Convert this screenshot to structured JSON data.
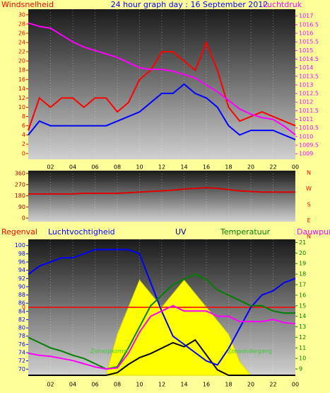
{
  "chart_data": [
    {
      "type": "line",
      "title": "24 hour graph day : 16 September 2012",
      "ylabel": "Windsnelheid",
      "y2label": "Luchtdruk",
      "xlim": [
        0,
        24
      ],
      "xticks": [
        {
          "value": 2,
          "label": "02"
        },
        {
          "value": 4,
          "label": "04"
        },
        {
          "value": 6,
          "label": "06"
        },
        {
          "value": 8,
          "label": "08"
        },
        10,
        12,
        14,
        16,
        18,
        20,
        22,
        {
          "value": 24,
          "label": "00"
        }
      ],
      "x": [
        0,
        1,
        2,
        3,
        4,
        5,
        6,
        7,
        8,
        9,
        10,
        11,
        12,
        13,
        14,
        15,
        16,
        17,
        18,
        19,
        20,
        21,
        22,
        23,
        24
      ],
      "ylim": [
        -0.8,
        31.2
      ],
      "yticks": [
        0,
        2,
        4,
        6,
        8,
        10,
        12,
        14,
        16,
        18,
        20,
        22,
        24,
        26,
        28,
        30
      ],
      "y2lim": [
        1008.8,
        1017.4
      ],
      "y2ticks": [
        1009,
        1009.5,
        1010,
        1010.5,
        1011,
        1011.5,
        1012,
        1012.5,
        1013,
        1013.5,
        1014,
        1014.5,
        1015,
        1015.5,
        1016,
        1016.5,
        1017
      ],
      "series": [
        {
          "color": "#ff0000",
          "values": [
            5,
            12,
            10,
            12,
            12,
            10,
            12,
            12,
            9,
            11,
            16,
            18,
            22,
            22,
            20,
            18,
            24,
            18,
            10,
            7,
            8,
            9,
            8,
            7,
            6
          ]
        },
        {
          "color": "#0000ff",
          "values": [
            4,
            7,
            6,
            6,
            6,
            6,
            6,
            6,
            7,
            8,
            9,
            11,
            13,
            13,
            15,
            13,
            12,
            10,
            6,
            4,
            5,
            5,
            5,
            4,
            3
          ]
        },
        {
          "color": "#ff00ff",
          "axis": "y2",
          "values": [
            1016.6,
            1016.4,
            1016.3,
            1015.9,
            1015.5,
            1015.2,
            1015.0,
            1014.8,
            1014.6,
            1014.3,
            1014.0,
            1013.9,
            1013.9,
            1013.8,
            1013.6,
            1013.4,
            1013.0,
            1012.6,
            1012.1,
            1011.6,
            1011.3,
            1011.1,
            1011.0,
            1010.6,
            1010.1
          ]
        }
      ]
    },
    {
      "type": "line",
      "xlim": [
        0,
        24
      ],
      "x": [
        0,
        1,
        2,
        3,
        4,
        5,
        6,
        7,
        8,
        9,
        10,
        11,
        12,
        13,
        14,
        15,
        16,
        17,
        18,
        19,
        20,
        21,
        22,
        23,
        24
      ],
      "ylim": [
        0,
        360
      ],
      "yticks": [
        0,
        90,
        180,
        270,
        360
      ],
      "direction_labels": [
        "N",
        "W",
        "S",
        "E",
        "N"
      ],
      "series": [
        {
          "color": "#dd0000",
          "values": [
            195,
            195,
            195,
            195,
            195,
            200,
            200,
            200,
            200,
            205,
            210,
            215,
            220,
            225,
            235,
            240,
            245,
            240,
            230,
            220,
            215,
            210,
            210,
            210,
            210
          ]
        }
      ]
    },
    {
      "type": "line",
      "labels": [
        "Regenval",
        "Luchtvochtigheid",
        "UV",
        "Temperatuur",
        "Dauwpunt"
      ],
      "xlim": [
        0,
        24
      ],
      "xticks": [
        {
          "value": 2,
          "label": "02"
        },
        {
          "value": 4,
          "label": "04"
        },
        {
          "value": 6,
          "label": "06"
        },
        {
          "value": 8,
          "label": "08"
        },
        10,
        12,
        14,
        16,
        18,
        20,
        22,
        {
          "value": 24,
          "label": "00"
        }
      ],
      "x": [
        0,
        1,
        2,
        3,
        4,
        5,
        6,
        7,
        8,
        9,
        10,
        11,
        12,
        13,
        14,
        15,
        16,
        17,
        18,
        19,
        20,
        21,
        22,
        23,
        24
      ],
      "ylim": [
        68.5,
        101.5
      ],
      "yticks": [
        70,
        72,
        74,
        76,
        78,
        80,
        82,
        84,
        86,
        88,
        90,
        92,
        94,
        96,
        98,
        100
      ],
      "y2lim": [
        8.4,
        21.3
      ],
      "y2ticks": [
        9,
        10,
        11,
        12,
        13,
        14,
        15,
        16,
        17,
        18,
        19,
        20,
        21
      ],
      "rainlim": [
        -1,
        1
      ],
      "rainticks": [
        0
      ],
      "uvlim": [
        0,
        10
      ],
      "annotations": [
        "Zonsopkomst",
        "Zonsondergang"
      ],
      "series": [
        {
          "color": "#ffff00",
          "axis": "uv",
          "values": [
            0,
            0,
            0,
            0,
            0,
            0,
            0,
            0,
            3,
            5,
            7,
            6,
            5,
            6,
            7,
            6,
            5,
            4,
            3,
            1,
            0,
            0,
            0,
            0,
            0
          ]
        },
        {
          "color": "#000000",
          "axis": "uv",
          "values": [
            0,
            0,
            0,
            0,
            0,
            0,
            0,
            0,
            0.2,
            0.8,
            1.3,
            1.6,
            2,
            2.4,
            2.1,
            2.6,
            1.5,
            0.4,
            0,
            0,
            0,
            0,
            0,
            0,
            0
          ]
        },
        {
          "color": "#ff0000",
          "axis": "rain",
          "values": [
            0,
            0,
            0,
            0,
            0,
            0,
            0,
            0,
            0,
            0,
            0,
            0,
            0,
            0,
            0,
            0,
            0,
            0,
            0,
            0,
            0,
            0,
            0,
            0,
            0
          ]
        },
        {
          "color": "#0000ff",
          "values": [
            93,
            95,
            96,
            97,
            97,
            98,
            99,
            99,
            99,
            99,
            98,
            91,
            84,
            78,
            76,
            74,
            72,
            71,
            75,
            80,
            85,
            88,
            89,
            91,
            92
          ]
        },
        {
          "color": "#008000",
          "axis": "y2",
          "values": [
            12,
            11.5,
            11,
            10.7,
            10.3,
            10,
            9.5,
            9,
            9.2,
            11,
            13,
            15,
            16,
            17,
            17.5,
            18,
            17.5,
            16.5,
            16,
            15.5,
            15,
            15,
            14.5,
            14.3,
            14.3
          ]
        },
        {
          "color": "#ff00ff",
          "axis": "y2",
          "values": [
            10.5,
            10.3,
            10.2,
            10,
            9.8,
            9.5,
            9.2,
            9,
            9.1,
            10.5,
            12.5,
            14,
            14.5,
            15,
            14.5,
            14.5,
            14.5,
            14,
            14,
            13.5,
            13.5,
            13.5,
            13.7,
            13.4,
            13.3
          ]
        }
      ]
    }
  ]
}
